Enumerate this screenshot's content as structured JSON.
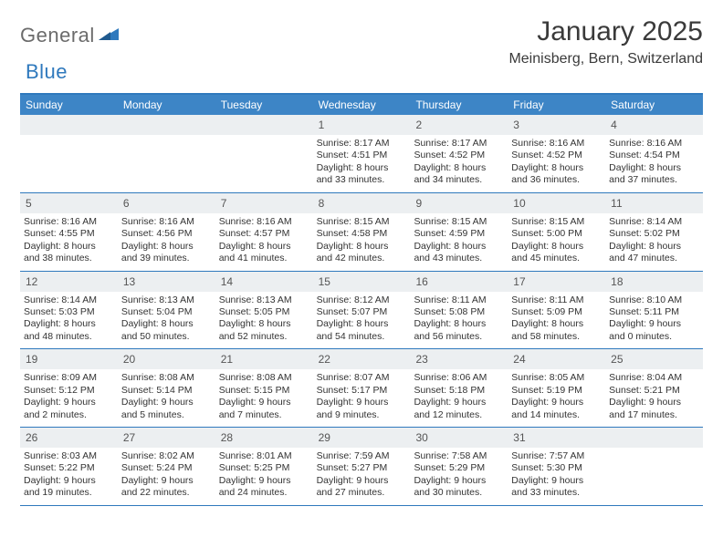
{
  "brand": {
    "general": "General",
    "blue": "Blue"
  },
  "title": {
    "month": "January 2025",
    "location": "Meinisberg, Bern, Switzerland"
  },
  "colors": {
    "header_bar": "#3d85c6",
    "accent_line": "#2f79bd",
    "daynum_bg": "#eceff1",
    "text": "#333333",
    "logo_gray": "#6b6b6b",
    "logo_blue": "#2f79bd",
    "background": "#ffffff"
  },
  "dow": [
    "Sunday",
    "Monday",
    "Tuesday",
    "Wednesday",
    "Thursday",
    "Friday",
    "Saturday"
  ],
  "weeks": [
    [
      {
        "n": "",
        "empty": true
      },
      {
        "n": "",
        "empty": true
      },
      {
        "n": "",
        "empty": true
      },
      {
        "n": "1",
        "sr": "Sunrise: 8:17 AM",
        "ss": "Sunset: 4:51 PM",
        "d1": "Daylight: 8 hours",
        "d2": "and 33 minutes."
      },
      {
        "n": "2",
        "sr": "Sunrise: 8:17 AM",
        "ss": "Sunset: 4:52 PM",
        "d1": "Daylight: 8 hours",
        "d2": "and 34 minutes."
      },
      {
        "n": "3",
        "sr": "Sunrise: 8:16 AM",
        "ss": "Sunset: 4:52 PM",
        "d1": "Daylight: 8 hours",
        "d2": "and 36 minutes."
      },
      {
        "n": "4",
        "sr": "Sunrise: 8:16 AM",
        "ss": "Sunset: 4:54 PM",
        "d1": "Daylight: 8 hours",
        "d2": "and 37 minutes."
      }
    ],
    [
      {
        "n": "5",
        "sr": "Sunrise: 8:16 AM",
        "ss": "Sunset: 4:55 PM",
        "d1": "Daylight: 8 hours",
        "d2": "and 38 minutes."
      },
      {
        "n": "6",
        "sr": "Sunrise: 8:16 AM",
        "ss": "Sunset: 4:56 PM",
        "d1": "Daylight: 8 hours",
        "d2": "and 39 minutes."
      },
      {
        "n": "7",
        "sr": "Sunrise: 8:16 AM",
        "ss": "Sunset: 4:57 PM",
        "d1": "Daylight: 8 hours",
        "d2": "and 41 minutes."
      },
      {
        "n": "8",
        "sr": "Sunrise: 8:15 AM",
        "ss": "Sunset: 4:58 PM",
        "d1": "Daylight: 8 hours",
        "d2": "and 42 minutes."
      },
      {
        "n": "9",
        "sr": "Sunrise: 8:15 AM",
        "ss": "Sunset: 4:59 PM",
        "d1": "Daylight: 8 hours",
        "d2": "and 43 minutes."
      },
      {
        "n": "10",
        "sr": "Sunrise: 8:15 AM",
        "ss": "Sunset: 5:00 PM",
        "d1": "Daylight: 8 hours",
        "d2": "and 45 minutes."
      },
      {
        "n": "11",
        "sr": "Sunrise: 8:14 AM",
        "ss": "Sunset: 5:02 PM",
        "d1": "Daylight: 8 hours",
        "d2": "and 47 minutes."
      }
    ],
    [
      {
        "n": "12",
        "sr": "Sunrise: 8:14 AM",
        "ss": "Sunset: 5:03 PM",
        "d1": "Daylight: 8 hours",
        "d2": "and 48 minutes."
      },
      {
        "n": "13",
        "sr": "Sunrise: 8:13 AM",
        "ss": "Sunset: 5:04 PM",
        "d1": "Daylight: 8 hours",
        "d2": "and 50 minutes."
      },
      {
        "n": "14",
        "sr": "Sunrise: 8:13 AM",
        "ss": "Sunset: 5:05 PM",
        "d1": "Daylight: 8 hours",
        "d2": "and 52 minutes."
      },
      {
        "n": "15",
        "sr": "Sunrise: 8:12 AM",
        "ss": "Sunset: 5:07 PM",
        "d1": "Daylight: 8 hours",
        "d2": "and 54 minutes."
      },
      {
        "n": "16",
        "sr": "Sunrise: 8:11 AM",
        "ss": "Sunset: 5:08 PM",
        "d1": "Daylight: 8 hours",
        "d2": "and 56 minutes."
      },
      {
        "n": "17",
        "sr": "Sunrise: 8:11 AM",
        "ss": "Sunset: 5:09 PM",
        "d1": "Daylight: 8 hours",
        "d2": "and 58 minutes."
      },
      {
        "n": "18",
        "sr": "Sunrise: 8:10 AM",
        "ss": "Sunset: 5:11 PM",
        "d1": "Daylight: 9 hours",
        "d2": "and 0 minutes."
      }
    ],
    [
      {
        "n": "19",
        "sr": "Sunrise: 8:09 AM",
        "ss": "Sunset: 5:12 PM",
        "d1": "Daylight: 9 hours",
        "d2": "and 2 minutes."
      },
      {
        "n": "20",
        "sr": "Sunrise: 8:08 AM",
        "ss": "Sunset: 5:14 PM",
        "d1": "Daylight: 9 hours",
        "d2": "and 5 minutes."
      },
      {
        "n": "21",
        "sr": "Sunrise: 8:08 AM",
        "ss": "Sunset: 5:15 PM",
        "d1": "Daylight: 9 hours",
        "d2": "and 7 minutes."
      },
      {
        "n": "22",
        "sr": "Sunrise: 8:07 AM",
        "ss": "Sunset: 5:17 PM",
        "d1": "Daylight: 9 hours",
        "d2": "and 9 minutes."
      },
      {
        "n": "23",
        "sr": "Sunrise: 8:06 AM",
        "ss": "Sunset: 5:18 PM",
        "d1": "Daylight: 9 hours",
        "d2": "and 12 minutes."
      },
      {
        "n": "24",
        "sr": "Sunrise: 8:05 AM",
        "ss": "Sunset: 5:19 PM",
        "d1": "Daylight: 9 hours",
        "d2": "and 14 minutes."
      },
      {
        "n": "25",
        "sr": "Sunrise: 8:04 AM",
        "ss": "Sunset: 5:21 PM",
        "d1": "Daylight: 9 hours",
        "d2": "and 17 minutes."
      }
    ],
    [
      {
        "n": "26",
        "sr": "Sunrise: 8:03 AM",
        "ss": "Sunset: 5:22 PM",
        "d1": "Daylight: 9 hours",
        "d2": "and 19 minutes."
      },
      {
        "n": "27",
        "sr": "Sunrise: 8:02 AM",
        "ss": "Sunset: 5:24 PM",
        "d1": "Daylight: 9 hours",
        "d2": "and 22 minutes."
      },
      {
        "n": "28",
        "sr": "Sunrise: 8:01 AM",
        "ss": "Sunset: 5:25 PM",
        "d1": "Daylight: 9 hours",
        "d2": "and 24 minutes."
      },
      {
        "n": "29",
        "sr": "Sunrise: 7:59 AM",
        "ss": "Sunset: 5:27 PM",
        "d1": "Daylight: 9 hours",
        "d2": "and 27 minutes."
      },
      {
        "n": "30",
        "sr": "Sunrise: 7:58 AM",
        "ss": "Sunset: 5:29 PM",
        "d1": "Daylight: 9 hours",
        "d2": "and 30 minutes."
      },
      {
        "n": "31",
        "sr": "Sunrise: 7:57 AM",
        "ss": "Sunset: 5:30 PM",
        "d1": "Daylight: 9 hours",
        "d2": "and 33 minutes."
      },
      {
        "n": "",
        "empty": true
      }
    ]
  ]
}
